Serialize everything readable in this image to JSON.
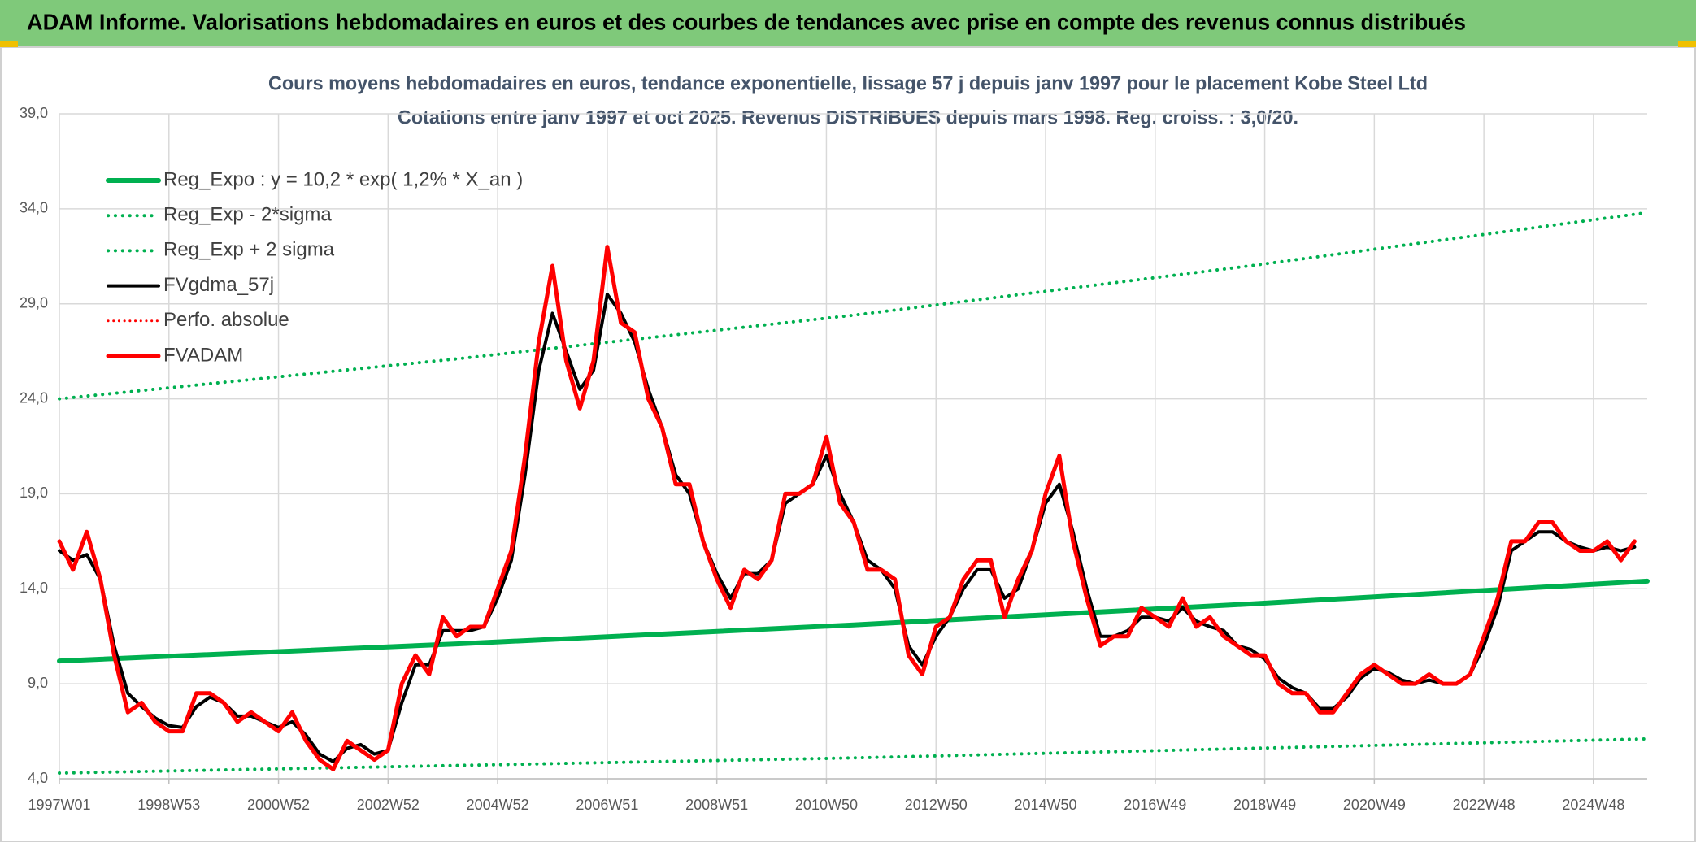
{
  "header": {
    "title": "ADAM Informe. Valorisations hebdomadaires en euros et des courbes de tendances avec prise en compte des revenus connus distribués"
  },
  "chart_data": {
    "type": "line",
    "title": "Cours moyens hebdomadaires en euros, tendance exponentielle, lissage 57 j depuis janv 1997 pour le placement Kobe Steel Ltd",
    "subtitle": "Cotations entre janv 1997 et oct 2025. Revenus DISTRIBUES depuis mars 1998. Reg. croiss. : 3,0/20.",
    "x": [
      0,
      13,
      26,
      39,
      52,
      65,
      78,
      91,
      104,
      117,
      130,
      143,
      156,
      169,
      182,
      195,
      208,
      221,
      234,
      247,
      260,
      273,
      286,
      299,
      312,
      325,
      338,
      351,
      364,
      377,
      390,
      403,
      416,
      429,
      442,
      455,
      468,
      481,
      494,
      507,
      520,
      533,
      546,
      559,
      572,
      585,
      598,
      611,
      624,
      637,
      650,
      663,
      676,
      689,
      702,
      715,
      728,
      741,
      754,
      767,
      780,
      793,
      806,
      819,
      832,
      845,
      858,
      871,
      884,
      897,
      910,
      923,
      936,
      949,
      962,
      975,
      988,
      1001,
      1014,
      1027,
      1040,
      1053,
      1066,
      1079,
      1092,
      1105,
      1118,
      1131,
      1144,
      1157,
      1170,
      1183,
      1196,
      1209,
      1222,
      1235,
      1248,
      1261,
      1274,
      1287,
      1300,
      1313,
      1326,
      1339,
      1352,
      1365,
      1378,
      1391,
      1404,
      1417,
      1430,
      1443,
      1456,
      1469,
      1482,
      1495
    ],
    "xlim": [
      0,
      1507
    ],
    "xticks": [
      {
        "value": 0,
        "label": "1997W01"
      },
      {
        "value": 104,
        "label": "1998W53"
      },
      {
        "value": 208,
        "label": "2000W52"
      },
      {
        "value": 312,
        "label": "2002W52"
      },
      {
        "value": 416,
        "label": "2004W52"
      },
      {
        "value": 520,
        "label": "2006W51"
      },
      {
        "value": 624,
        "label": "2008W51"
      },
      {
        "value": 728,
        "label": "2010W50"
      },
      {
        "value": 832,
        "label": "2012W50"
      },
      {
        "value": 936,
        "label": "2014W50"
      },
      {
        "value": 1040,
        "label": "2016W49"
      },
      {
        "value": 1144,
        "label": "2018W49"
      },
      {
        "value": 1248,
        "label": "2020W49"
      },
      {
        "value": 1352,
        "label": "2022W48"
      },
      {
        "value": 1456,
        "label": "2024W48"
      }
    ],
    "ylim": [
      4,
      39
    ],
    "yticks": [
      {
        "value": 4,
        "label": "4,0"
      },
      {
        "value": 9,
        "label": "9,0"
      },
      {
        "value": 14,
        "label": "14,0"
      },
      {
        "value": 19,
        "label": "19,0"
      },
      {
        "value": 24,
        "label": "24,0"
      },
      {
        "value": 29,
        "label": "29,0"
      },
      {
        "value": 34,
        "label": "34,0"
      },
      {
        "value": 39,
        "label": "39,0"
      }
    ],
    "grid": true,
    "legend": "upper left",
    "series": [
      {
        "name": "Reg_Expo : y = 10,2 * exp( 1,2% *  X_an )",
        "color": "#00b050",
        "style": "solid",
        "width": 6,
        "x": [
          0,
          377,
          754,
          1130,
          1507
        ],
        "values": [
          10.2,
          11.1,
          12.1,
          13.2,
          14.4
        ]
      },
      {
        "name": "Reg_Exp - 2*sigma",
        "color": "#00b050",
        "style": "dotted",
        "width": 4,
        "x": [
          0,
          377,
          754,
          1130,
          1507
        ],
        "values": [
          4.3,
          4.7,
          5.1,
          5.6,
          6.1
        ]
      },
      {
        "name": "Reg_Exp + 2 sigma",
        "color": "#00b050",
        "style": "dotted",
        "width": 4,
        "x": [
          0,
          377,
          754,
          1130,
          1507
        ],
        "values": [
          24.0,
          26.1,
          28.4,
          31.0,
          33.8
        ]
      },
      {
        "name": "FVgdma_57j",
        "color": "#000000",
        "style": "solid",
        "width": 4,
        "values": [
          16.0,
          15.5,
          15.8,
          14.5,
          11.0,
          8.5,
          7.8,
          7.2,
          6.8,
          6.7,
          7.8,
          8.3,
          8.0,
          7.3,
          7.3,
          7.0,
          6.7,
          7.0,
          6.3,
          5.3,
          4.9,
          5.6,
          5.8,
          5.3,
          5.5,
          8.0,
          10.0,
          10.0,
          11.8,
          11.8,
          11.8,
          12.0,
          13.5,
          15.5,
          20.0,
          25.5,
          28.5,
          26.5,
          24.5,
          25.5,
          29.5,
          28.5,
          27.0,
          24.5,
          22.5,
          20.0,
          19.0,
          16.5,
          14.8,
          13.5,
          14.8,
          14.8,
          15.5,
          18.5,
          19.0,
          19.5,
          21.0,
          19.0,
          17.5,
          15.5,
          15.0,
          14.0,
          11.0,
          10.0,
          11.5,
          12.5,
          14.0,
          15.0,
          15.0,
          13.5,
          14.0,
          16.0,
          18.5,
          19.5,
          17.0,
          14.0,
          11.5,
          11.5,
          11.8,
          12.5,
          12.5,
          12.3,
          13.0,
          12.3,
          12.0,
          11.8,
          11.0,
          10.8,
          10.3,
          9.3,
          8.8,
          8.5,
          7.7,
          7.7,
          8.3,
          9.3,
          9.8,
          9.6,
          9.2,
          9.0,
          9.2,
          9.0,
          9.0,
          9.5,
          11.0,
          13.0,
          16.0,
          16.5,
          17.0,
          17.0,
          16.5,
          16.2,
          16.0,
          16.2,
          16.0,
          16.2
        ]
      },
      {
        "name": "Perfo. absolue",
        "color": "#ff0000",
        "style": "dotted",
        "width": 3
      },
      {
        "name": "FVADAM",
        "color": "#ff0000",
        "style": "solid",
        "width": 5,
        "values": [
          16.5,
          15.0,
          17.0,
          14.5,
          10.5,
          7.5,
          8.0,
          7.0,
          6.5,
          6.5,
          8.5,
          8.5,
          8.0,
          7.0,
          7.5,
          7.0,
          6.5,
          7.5,
          6.0,
          5.0,
          4.5,
          6.0,
          5.5,
          5.0,
          5.5,
          9.0,
          10.5,
          9.5,
          12.5,
          11.5,
          12.0,
          12.0,
          14.0,
          16.0,
          21.0,
          27.0,
          31.0,
          26.0,
          23.5,
          26.0,
          32.0,
          28.0,
          27.5,
          24.0,
          22.5,
          19.5,
          19.5,
          16.5,
          14.5,
          13.0,
          15.0,
          14.5,
          15.5,
          19.0,
          19.0,
          19.5,
          22.0,
          18.5,
          17.5,
          15.0,
          15.0,
          14.5,
          10.5,
          9.5,
          12.0,
          12.5,
          14.5,
          15.5,
          15.5,
          12.5,
          14.5,
          16.0,
          19.0,
          21.0,
          16.5,
          13.5,
          11.0,
          11.5,
          11.5,
          13.0,
          12.5,
          12.0,
          13.5,
          12.0,
          12.5,
          11.5,
          11.0,
          10.5,
          10.5,
          9.0,
          8.5,
          8.5,
          7.5,
          7.5,
          8.5,
          9.5,
          10.0,
          9.5,
          9.0,
          9.0,
          9.5,
          9.0,
          9.0,
          9.5,
          11.5,
          13.5,
          16.5,
          16.5,
          17.5,
          17.5,
          16.5,
          16.0,
          16.0,
          16.5,
          15.5,
          16.5
        ]
      }
    ]
  }
}
